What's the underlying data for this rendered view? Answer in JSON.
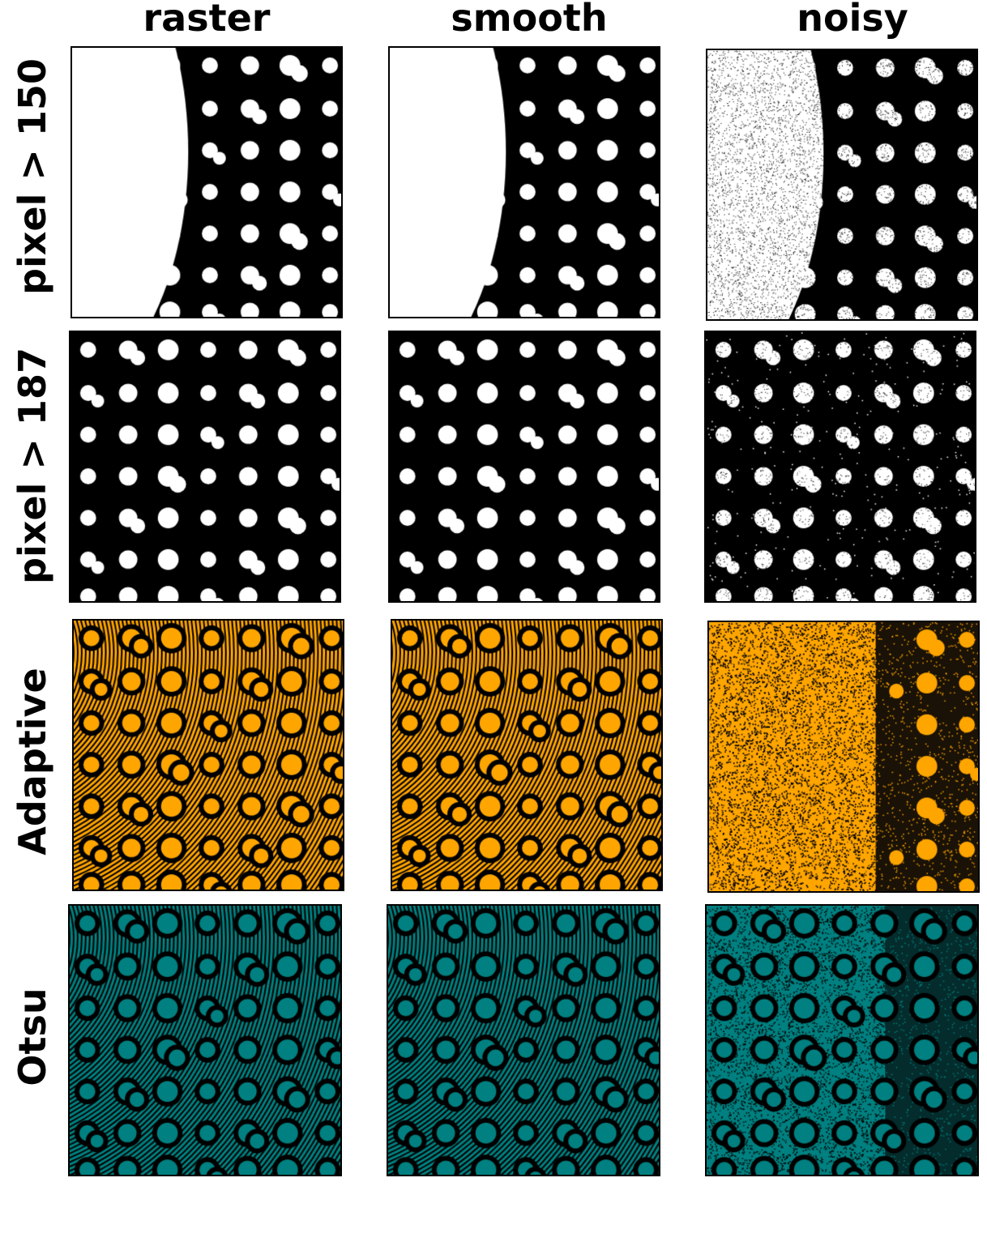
{
  "columns": [
    "raster",
    "smooth",
    "noisy"
  ],
  "rows": [
    {
      "label": "pixel > 150",
      "fg": "#ffffff",
      "bg": "#000000",
      "mode": "threshold150"
    },
    {
      "label": "pixel > 187",
      "fg": "#ffffff",
      "bg": "#000000",
      "mode": "threshold187"
    },
    {
      "label": "Adaptive",
      "fg": "#ffa500",
      "bg": "#000000",
      "mode": "adaptive"
    },
    {
      "label": "Otsu",
      "fg": "#008080",
      "bg": "#000000",
      "mode": "otsu"
    }
  ]
}
